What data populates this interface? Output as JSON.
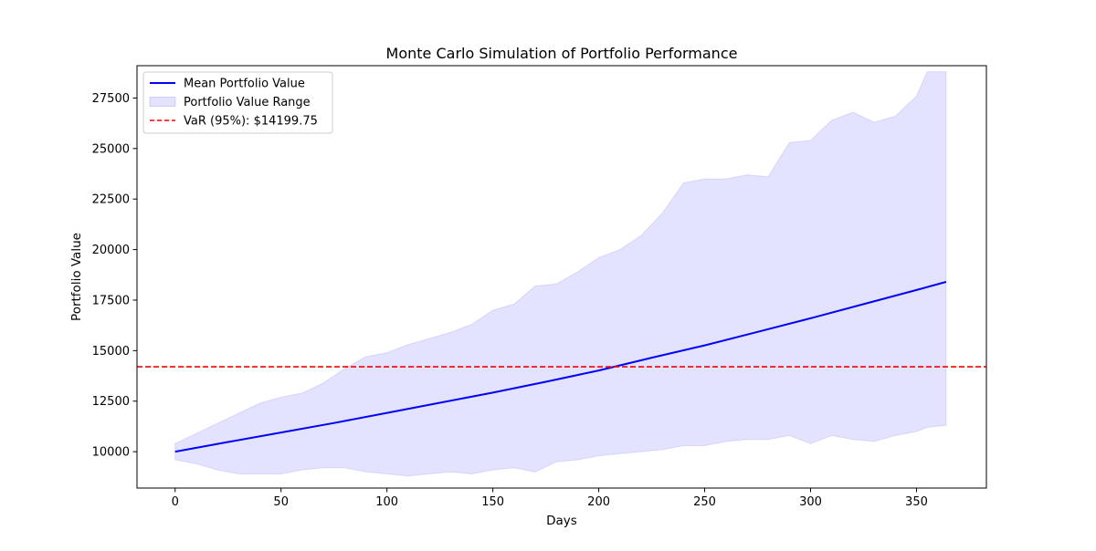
{
  "chart_data": {
    "type": "line",
    "title": "Monte Carlo Simulation of Portfolio Performance",
    "xlabel": "Days",
    "ylabel": "Portfolio Value",
    "xlim": [
      -18,
      383
    ],
    "ylim": [
      8200,
      29100
    ],
    "x_ticks": [
      0,
      50,
      100,
      150,
      200,
      250,
      300,
      350
    ],
    "y_ticks": [
      10000,
      12500,
      15000,
      17500,
      20000,
      22500,
      25000,
      27500
    ],
    "grid": false,
    "legend_position": "upper left",
    "series": [
      {
        "name": "Mean Portfolio Value",
        "kind": "line",
        "color": "#0000ff",
        "x": [
          0,
          25,
          50,
          75,
          100,
          125,
          150,
          175,
          200,
          225,
          250,
          275,
          300,
          325,
          350,
          364
        ],
        "values": [
          10000,
          10480,
          10950,
          11420,
          11920,
          12420,
          12920,
          13460,
          14020,
          14650,
          15260,
          15930,
          16600,
          17300,
          18000,
          18400
        ]
      },
      {
        "name": "Portfolio Value Range",
        "kind": "band",
        "color": "#0000ff",
        "opacity": 0.11,
        "x": [
          0,
          10,
          20,
          30,
          40,
          50,
          60,
          70,
          80,
          90,
          100,
          110,
          120,
          130,
          140,
          150,
          160,
          170,
          180,
          190,
          200,
          210,
          220,
          230,
          240,
          250,
          260,
          270,
          280,
          290,
          300,
          310,
          320,
          330,
          340,
          350,
          355,
          364
        ],
        "upper": [
          10400,
          10900,
          11400,
          11900,
          12400,
          12700,
          12900,
          13400,
          14100,
          14700,
          14900,
          15300,
          15600,
          15900,
          16300,
          17000,
          17300,
          18200,
          18300,
          18900,
          19600,
          20000,
          20700,
          21800,
          23300,
          23500,
          23500,
          23700,
          23600,
          25300,
          25400,
          26400,
          26800,
          26300,
          26600,
          27600,
          28800,
          28800
        ],
        "lower": [
          9600,
          9400,
          9100,
          8900,
          8900,
          8900,
          9100,
          9200,
          9200,
          9000,
          8900,
          8800,
          8900,
          9000,
          8900,
          9100,
          9200,
          9000,
          9500,
          9600,
          9800,
          9900,
          10000,
          10100,
          10300,
          10300,
          10500,
          10600,
          10600,
          10800,
          10400,
          10800,
          10600,
          10500,
          10800,
          11000,
          11200,
          11300
        ]
      },
      {
        "name": "VaR (95%): $14199.75",
        "kind": "hline",
        "color": "#ff0000",
        "dash": true,
        "y": 14199.75
      }
    ]
  }
}
